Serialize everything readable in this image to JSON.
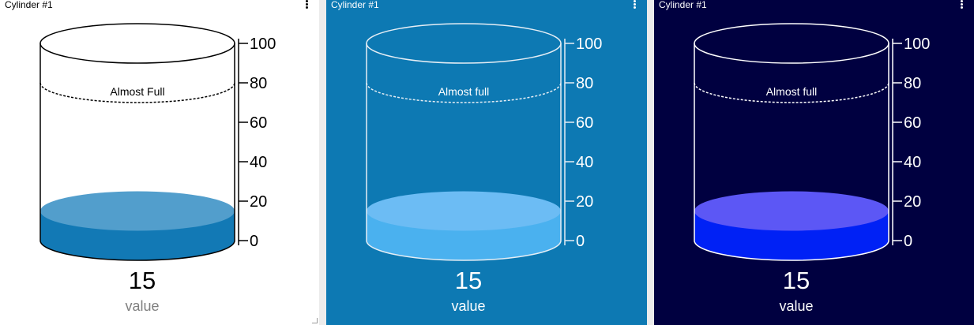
{
  "widgets": [
    {
      "title": "Cylinder #1",
      "level": 15,
      "range": [
        0,
        100
      ],
      "ticks": [
        "100",
        "80",
        "60",
        "40",
        "20",
        "0"
      ],
      "threshold": {
        "value": 80,
        "label": "Almost Full"
      },
      "value_text": "15",
      "value_label": "value",
      "colors": {
        "background": "#ffffff",
        "title": "#000000",
        "outline": "#000000",
        "fill_top": "#529ecc",
        "fill_body": "#1279b5",
        "tick_text": "#000000",
        "value_text": "#000000",
        "label_text": "#7f7f7f"
      }
    },
    {
      "title": "Cylinder #1",
      "level": 15,
      "range": [
        0,
        100
      ],
      "ticks": [
        "100",
        "80",
        "60",
        "40",
        "20",
        "0"
      ],
      "threshold": {
        "value": 80,
        "label": "Almost full"
      },
      "value_text": "15",
      "value_label": "value",
      "colors": {
        "background": "#0d79b3",
        "title": "#ffffff",
        "outline": "#e6eef5",
        "fill_top": "#6cbcf4",
        "fill_body": "#4ab1ef",
        "tick_text": "#ffffff",
        "value_text": "#ffffff",
        "label_text": "#ffffff"
      }
    },
    {
      "title": "Cylinder #1",
      "level": 15,
      "range": [
        0,
        100
      ],
      "ticks": [
        "100",
        "80",
        "60",
        "40",
        "20",
        "0"
      ],
      "threshold": {
        "value": 80,
        "label": "Almost full"
      },
      "value_text": "15",
      "value_label": "value",
      "colors": {
        "background": "#000040",
        "title": "#ffffff",
        "outline": "#ffffff",
        "fill_top": "#5c57f5",
        "fill_body": "#0021f5",
        "tick_text": "#ffffff",
        "value_text": "#ffffff",
        "label_text": "#ffffff"
      }
    }
  ]
}
